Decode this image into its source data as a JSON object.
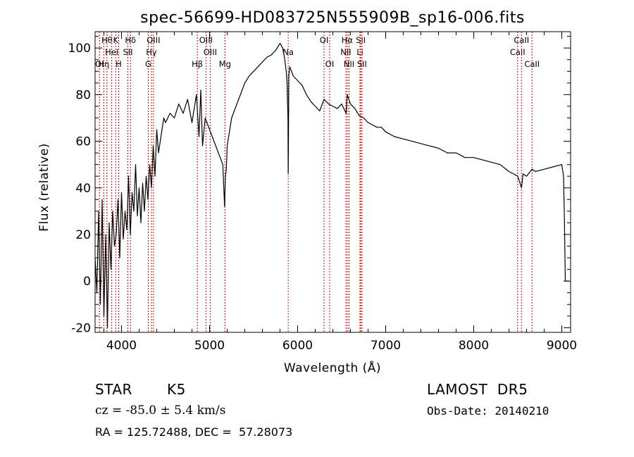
{
  "chart_data": {
    "type": "line",
    "title": "spec-56699-HD083725N555909B_sp16-006.fits",
    "xlabel": "Wavelength (Å)",
    "ylabel": "Flux (relative)",
    "xlim": [
      3700,
      9100
    ],
    "ylim": [
      -22,
      107
    ],
    "x_ticks": [
      4000,
      5000,
      6000,
      7000,
      8000,
      9000
    ],
    "y_ticks": [
      -20,
      0,
      20,
      40,
      60,
      80,
      100
    ],
    "grid": false,
    "series": [
      {
        "x": [
          3700,
          3720,
          3740,
          3760,
          3780,
          3800,
          3820,
          3840,
          3860,
          3880,
          3900,
          3920,
          3940,
          3960,
          3980,
          4000,
          4020,
          4040,
          4060,
          4080,
          4100,
          4120,
          4140,
          4160,
          4180,
          4200,
          4220,
          4240,
          4260,
          4280,
          4300,
          4320,
          4340,
          4360,
          4380,
          4400,
          4420,
          4440,
          4460,
          4480,
          4500,
          4550,
          4600,
          4650,
          4700,
          4750,
          4800,
          4850,
          4880,
          4900,
          4920,
          4950,
          5000,
          5050,
          5100,
          5150,
          5170,
          5180,
          5190,
          5200,
          5250,
          5300,
          5350,
          5400,
          5450,
          5500,
          5550,
          5600,
          5650,
          5700,
          5750,
          5800,
          5830,
          5850,
          5870,
          5880,
          5890,
          5893,
          5896,
          5900,
          5910,
          5930,
          5950,
          6000,
          6050,
          6100,
          6150,
          6200,
          6250,
          6300,
          6350,
          6400,
          6450,
          6500,
          6550,
          6563,
          6600,
          6650,
          6700,
          6750,
          6800,
          6850,
          6900,
          6950,
          7000,
          7100,
          7200,
          7300,
          7400,
          7500,
          7600,
          7700,
          7800,
          7900,
          8000,
          8100,
          8200,
          8300,
          8400,
          8450,
          8500,
          8542,
          8560,
          8600,
          8662,
          8700,
          8800,
          8900,
          9000,
          9020,
          9030,
          9040,
          9080
        ],
        "values": [
          10,
          -5,
          30,
          -10,
          35,
          -15,
          20,
          -20,
          25,
          5,
          30,
          15,
          20,
          35,
          10,
          38,
          18,
          30,
          22,
          45,
          20,
          38,
          30,
          50,
          28,
          40,
          25,
          42,
          30,
          45,
          35,
          50,
          40,
          58,
          45,
          65,
          55,
          60,
          65,
          70,
          68,
          72,
          70,
          76,
          72,
          78,
          68,
          80,
          62,
          82,
          58,
          70,
          65,
          60,
          55,
          50,
          32,
          45,
          48,
          58,
          70,
          75,
          80,
          85,
          88,
          90,
          92,
          94,
          96,
          97,
          99,
          102,
          100,
          96,
          90,
          85,
          70,
          46,
          60,
          88,
          92,
          90,
          88,
          86,
          84,
          80,
          77,
          75,
          73,
          78,
          76,
          75,
          74,
          76,
          72,
          80,
          76,
          74,
          71,
          70,
          68,
          67,
          66,
          66,
          64,
          62,
          61,
          60,
          59,
          58,
          57,
          55,
          55,
          53,
          53,
          52,
          51,
          50,
          47,
          46,
          45,
          40,
          46,
          45,
          48,
          47,
          48,
          49,
          50,
          45,
          25,
          0,
          0
        ]
      }
    ],
    "line_markers": [
      {
        "wl": 3750,
        "label": "OI",
        "row": 2
      },
      {
        "wl": 3799,
        "label": "Hη",
        "row": 2
      },
      {
        "wl": 3835,
        "label": "Hθ",
        "row": 0
      },
      {
        "wl": 3889,
        "label": "HeI",
        "row": 1
      },
      {
        "wl": 3934,
        "label": "K",
        "row": 0
      },
      {
        "wl": 3968,
        "label": "H",
        "row": 2
      },
      {
        "wl": 4072,
        "label": "SII",
        "row": 1
      },
      {
        "wl": 4102,
        "label": "Hδ",
        "row": 0
      },
      {
        "wl": 4304,
        "label": "G",
        "row": 2
      },
      {
        "wl": 4340,
        "label": "Hγ",
        "row": 1
      },
      {
        "wl": 4363,
        "label": "OIII",
        "row": 0
      },
      {
        "wl": 4861,
        "label": "Hβ",
        "row": 2
      },
      {
        "wl": 4959,
        "label": "OIII",
        "row": 0
      },
      {
        "wl": 5007,
        "label": "OIII",
        "row": 1
      },
      {
        "wl": 5175,
        "label": "Mg",
        "row": 2
      },
      {
        "wl": 5893,
        "label": "Na",
        "row": 1
      },
      {
        "wl": 6300,
        "label": "OI",
        "row": 0
      },
      {
        "wl": 6364,
        "label": "OI",
        "row": 2
      },
      {
        "wl": 6548,
        "label": "NII",
        "row": 1
      },
      {
        "wl": 6563,
        "label": "Hα",
        "row": 0
      },
      {
        "wl": 6584,
        "label": "NII",
        "row": 2
      },
      {
        "wl": 6708,
        "label": "Li",
        "row": 1
      },
      {
        "wl": 6717,
        "label": "SII",
        "row": 0
      },
      {
        "wl": 6731,
        "label": "SII",
        "row": 2
      },
      {
        "wl": 8498,
        "label": "CaII",
        "row": 1
      },
      {
        "wl": 8542,
        "label": "CaII",
        "row": 0
      },
      {
        "wl": 8662,
        "label": "CaII",
        "row": 2
      }
    ],
    "marker_color": "#cc0000",
    "line_color": "#000000"
  },
  "info": {
    "object_class": "STAR",
    "subclass": "K5",
    "survey": "LAMOST  DR5",
    "redshift_text": "cz = -85.0 ± 5.4 km/s",
    "obs_date_text": "Obs-Date: 20140210",
    "coords_text": "RA = 125.72488, DEC =  57.28073"
  }
}
